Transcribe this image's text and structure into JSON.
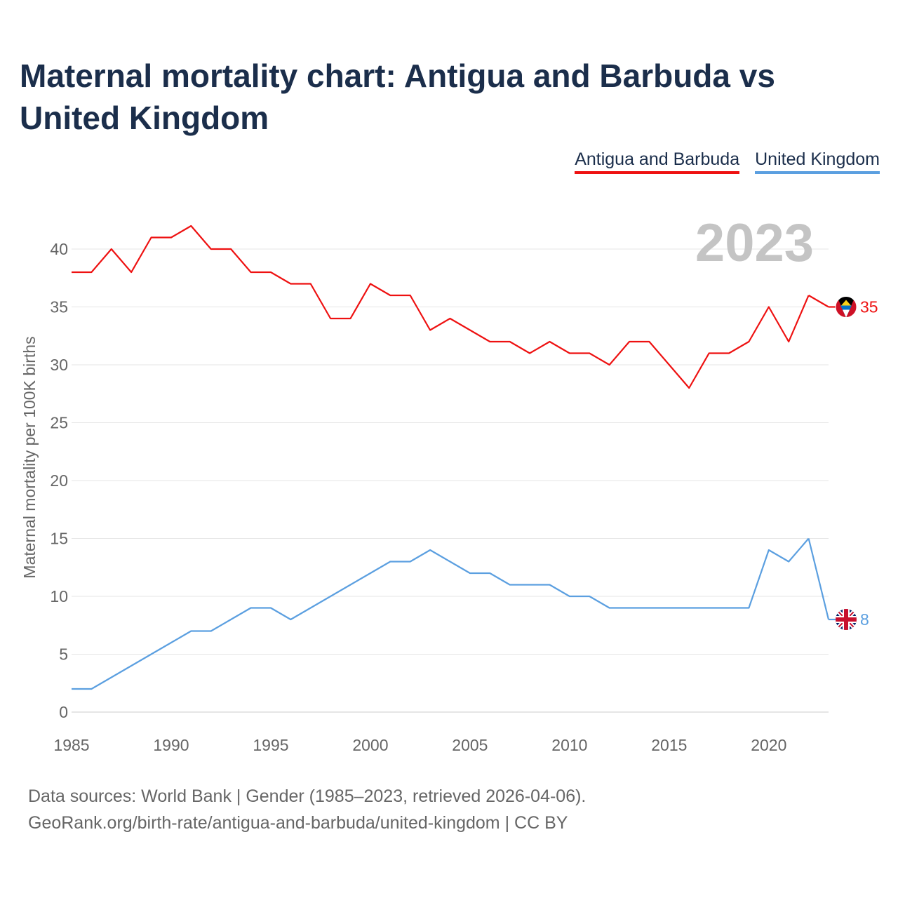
{
  "title": "Maternal mortality chart: Antigua and Barbuda vs United Kingdom",
  "legend": [
    {
      "label": "Antigua and Barbuda",
      "color": "#ee1111"
    },
    {
      "label": "United Kingdom",
      "color": "#5b9fe0"
    }
  ],
  "source": {
    "line1": "Data sources: World Bank | Gender (1985–2023, retrieved 2026-04-06).",
    "line2": "GeoRank.org/birth-rate/antigua-and-barbuda/united-kingdom | CC BY"
  },
  "chart_data": {
    "type": "line",
    "title": "Maternal mortality chart: Antigua and Barbuda vs United Kingdom",
    "xlabel": "",
    "ylabel": "Maternal mortality per 100K births",
    "year_label": "2023",
    "xlim": [
      1985,
      2023
    ],
    "ylim": [
      0,
      42
    ],
    "xticks": [
      1985,
      1990,
      1995,
      2000,
      2005,
      2010,
      2015,
      2020
    ],
    "yticks": [
      0,
      5,
      10,
      15,
      20,
      25,
      30,
      35,
      40
    ],
    "grid": true,
    "x": [
      1985,
      1986,
      1987,
      1988,
      1989,
      1990,
      1991,
      1992,
      1993,
      1994,
      1995,
      1996,
      1997,
      1998,
      1999,
      2000,
      2001,
      2002,
      2003,
      2004,
      2005,
      2006,
      2007,
      2008,
      2009,
      2010,
      2011,
      2012,
      2013,
      2014,
      2015,
      2016,
      2017,
      2018,
      2019,
      2020,
      2021,
      2022,
      2023
    ],
    "series": [
      {
        "name": "Antigua and Barbuda",
        "color": "#ee1111",
        "end_label": "35",
        "flag": "antigua-flag-icon",
        "values": [
          38,
          38,
          40,
          38,
          41,
          41,
          42,
          40,
          40,
          38,
          38,
          37,
          37,
          34,
          34,
          37,
          36,
          36,
          33,
          34,
          33,
          32,
          32,
          31,
          32,
          31,
          31,
          30,
          32,
          32,
          30,
          28,
          31,
          31,
          32,
          35,
          32,
          36,
          35
        ]
      },
      {
        "name": "United Kingdom",
        "color": "#5b9fe0",
        "end_label": "8",
        "flag": "uk-flag-icon",
        "values": [
          2,
          2,
          3,
          4,
          5,
          6,
          7,
          7,
          8,
          9,
          9,
          8,
          9,
          10,
          11,
          12,
          13,
          13,
          14,
          13,
          12,
          12,
          11,
          11,
          11,
          10,
          10,
          9,
          9,
          9,
          9,
          9,
          9,
          9,
          9,
          14,
          13,
          15,
          8
        ]
      }
    ]
  }
}
